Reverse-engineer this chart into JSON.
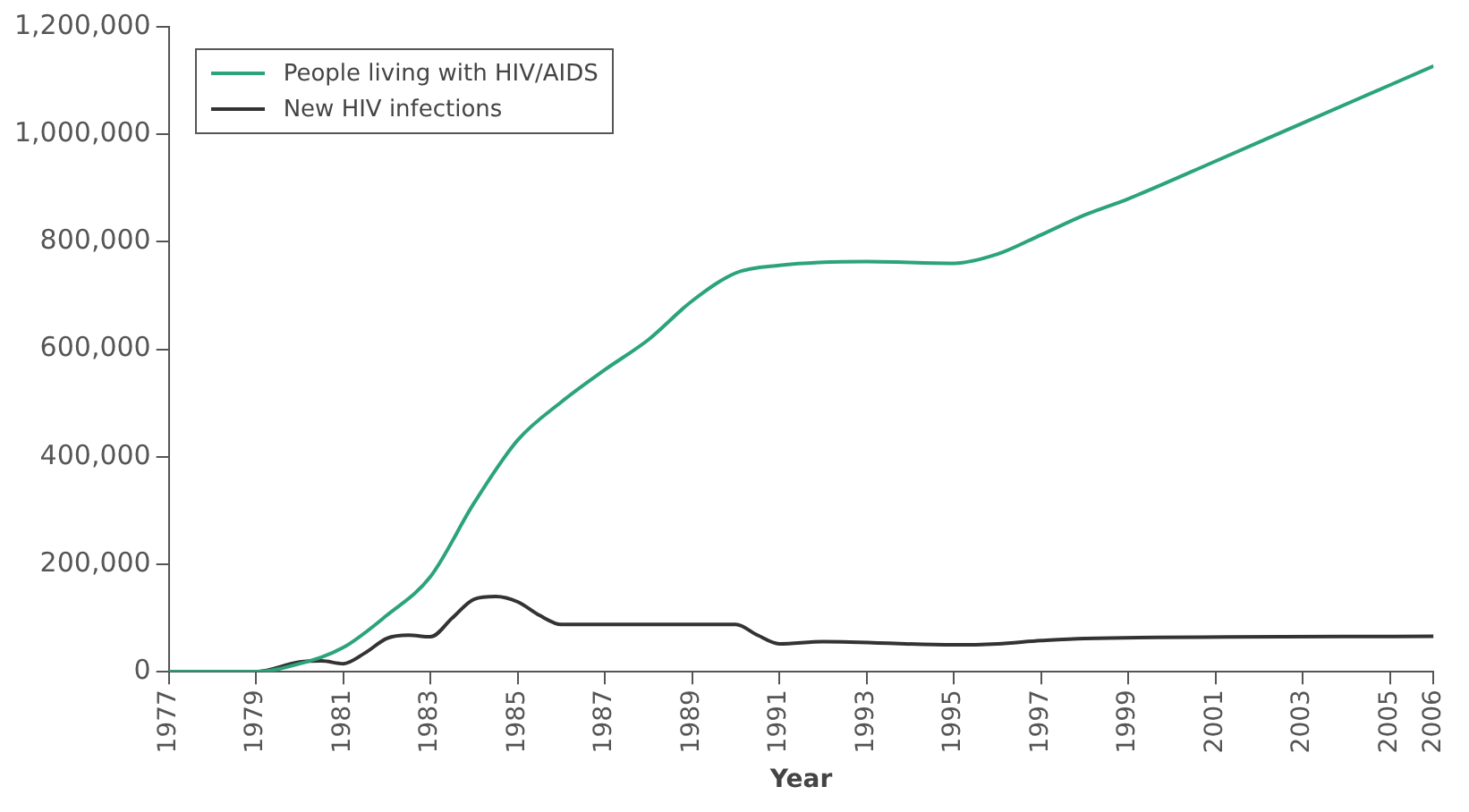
{
  "chart_data": {
    "type": "line",
    "xlabel": "Year",
    "legend": "top left",
    "grid": false,
    "marker": "none",
    "line_style": "solid",
    "xlim": [
      1977,
      2006
    ],
    "xticks": [
      1977,
      1979,
      1981,
      1983,
      1985,
      1987,
      1989,
      1991,
      1993,
      1995,
      1997,
      1999,
      2001,
      2003,
      2005,
      2006
    ],
    "ylim": [
      0,
      1200000
    ],
    "yticks": [
      {
        "value": 0,
        "label": "0"
      },
      {
        "value": 200000,
        "label": "200,000"
      },
      {
        "value": 400000,
        "label": "400,000"
      },
      {
        "value": 600000,
        "label": "600,000"
      },
      {
        "value": 800000,
        "label": "800,000"
      },
      {
        "value": 1000000,
        "label": "1,000,000"
      },
      {
        "value": 1200000,
        "label": "1,200,000"
      }
    ],
    "series": [
      {
        "name": "People living with HIV/AIDS",
        "color": "#2ba37c",
        "x": [
          1977,
          1979,
          1980,
          1981,
          1982,
          1983,
          1984,
          1985,
          1986,
          1987,
          1988,
          1989,
          1990,
          1991,
          1993,
          1995,
          1996,
          1997,
          1998,
          1999,
          2001,
          2003,
          2006
        ],
        "values": [
          0,
          0,
          15000,
          45000,
          105000,
          177000,
          314000,
          431000,
          502000,
          562000,
          618000,
          690000,
          742000,
          756000,
          763000,
          760000,
          777000,
          813000,
          850000,
          880000,
          950000,
          1021000,
          1127000
        ]
      },
      {
        "name": "New HIV infections",
        "color": "#333333",
        "x": [
          1977,
          1979,
          1980,
          1980.5,
          1981,
          1981.5,
          1982,
          1982.5,
          1983,
          1983.5,
          1984,
          1984.5,
          1985,
          1985.5,
          1986,
          1987,
          1990,
          1990.5,
          1991,
          1992,
          1995,
          1996,
          1997,
          1998,
          2006
        ],
        "values": [
          0,
          0,
          18000,
          20000,
          15000,
          35000,
          62000,
          68000,
          65000,
          100000,
          135000,
          140000,
          130000,
          105000,
          88000,
          88000,
          88000,
          68000,
          52000,
          56000,
          50000,
          52000,
          58000,
          62000,
          66000
        ]
      }
    ]
  }
}
